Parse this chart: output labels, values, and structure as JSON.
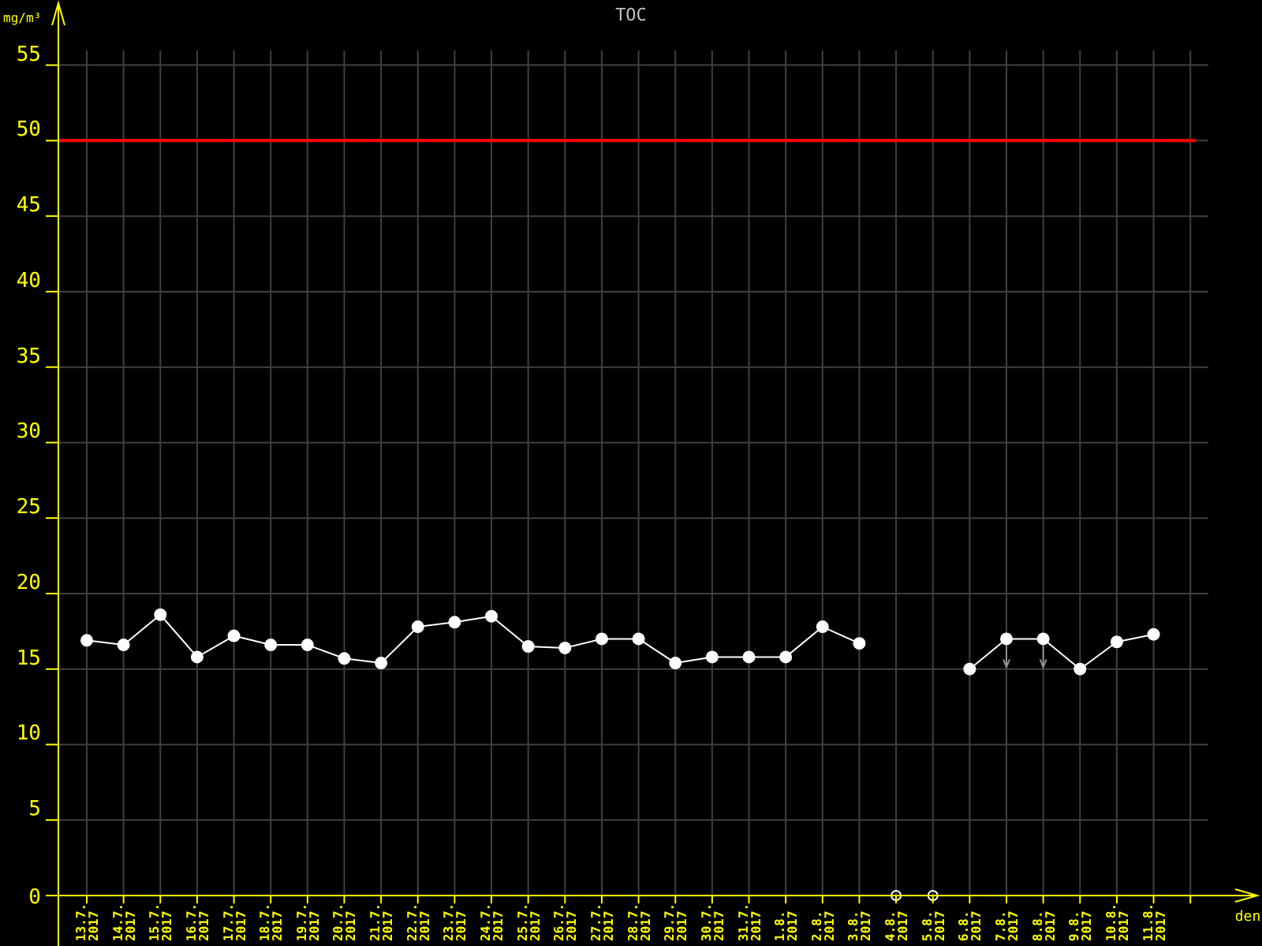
{
  "chart_data": {
    "type": "line",
    "title": "TOC",
    "xlabel": "den",
    "ylabel": "mg/m³",
    "categories": [
      "13.7. 2017",
      "14.7. 2017",
      "15.7. 2017",
      "16.7. 2017",
      "17.7. 2017",
      "18.7. 2017",
      "19.7. 2017",
      "20.7. 2017",
      "21.7. 2017",
      "22.7. 2017",
      "23.7. 2017",
      "24.7. 2017",
      "25.7. 2017",
      "26.7. 2017",
      "27.7. 2017",
      "28.7. 2017",
      "29.7. 2017",
      "30.7. 2017",
      "31.7. 2017",
      "1.8. 2017",
      "2.8. 2017",
      "3.8. 2017",
      "4.8. 2017",
      "5.8. 2017",
      "6.8. 2017",
      "7.8. 2017",
      "8.8. 2017",
      "9.8. 2017",
      "10.8. 2017",
      "11.8. 2017"
    ],
    "series": [
      {
        "color": "#ffffff",
        "values": [
          16.9,
          16.6,
          18.6,
          15.8,
          17.2,
          16.6,
          16.6,
          15.7,
          15.4,
          17.8,
          18.1,
          18.5,
          16.5,
          16.4,
          17.0,
          17.0,
          15.4,
          15.8,
          15.8,
          15.8,
          17.8,
          16.7,
          null,
          null,
          15.0,
          17.0,
          17.0,
          15.0,
          16.8,
          17.3
        ]
      }
    ],
    "ylim": [
      0,
      59
    ],
    "yticks": [
      0,
      5,
      10,
      15,
      20,
      25,
      30,
      35,
      40,
      45,
      50,
      55
    ],
    "grid": true,
    "marker": "circle",
    "line_style": "solid",
    "ref_lines": [
      {
        "axis": "y",
        "value": 50,
        "color": "#ff0000"
      }
    ]
  }
}
